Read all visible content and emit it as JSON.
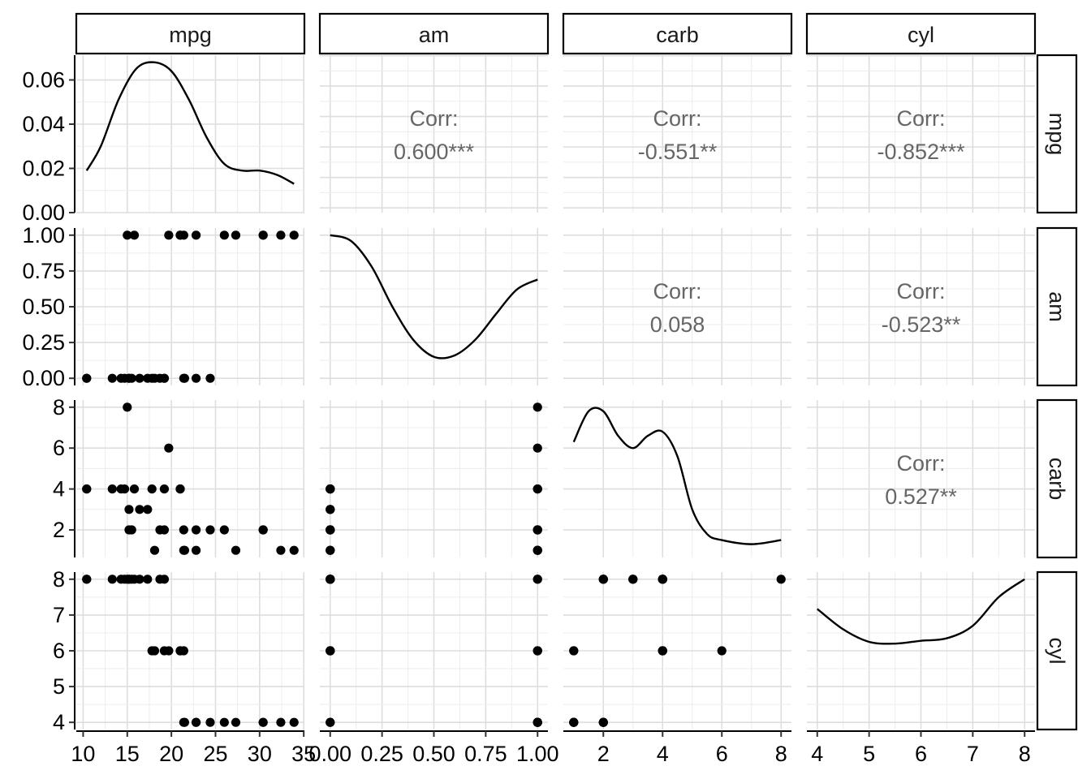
{
  "chart_data": {
    "type": "scatter",
    "subtype": "pairs-plot",
    "variables": [
      "mpg",
      "am",
      "carb",
      "cyl"
    ],
    "row_strips": [
      "mpg",
      "am",
      "carb",
      "cyl"
    ],
    "grid": true,
    "axes": {
      "mpg": {
        "range": [
          10.4,
          33.9
        ],
        "ticks": [
          10,
          15,
          20,
          25,
          30,
          35
        ]
      },
      "am": {
        "range": [
          0,
          1
        ],
        "ticks": [
          0,
          0.25,
          0.5,
          0.75,
          1
        ],
        "tick_labels": [
          "0.00",
          "0.25",
          "0.50",
          "0.75",
          "1.00"
        ]
      },
      "carb": {
        "range": [
          1,
          8
        ],
        "ticks": [
          2,
          4,
          6,
          8
        ]
      },
      "cyl": {
        "range": [
          4,
          8
        ],
        "ticks": [
          4,
          5,
          6,
          7,
          8
        ]
      }
    },
    "density_y_axis": {
      "range": [
        0,
        0.0712
      ],
      "ticks": [
        0,
        0.02,
        0.04,
        0.06
      ],
      "tick_labels": [
        "0.00",
        "0.02",
        "0.04",
        "0.06"
      ]
    },
    "correlations": [
      {
        "row": "mpg",
        "col": "am",
        "label": "Corr:",
        "value": "0.600***"
      },
      {
        "row": "mpg",
        "col": "carb",
        "label": "Corr:",
        "value": "-0.551**"
      },
      {
        "row": "mpg",
        "col": "cyl",
        "label": "Corr:",
        "value": "-0.852***"
      },
      {
        "row": "am",
        "col": "carb",
        "label": "Corr:",
        "value": "0.058"
      },
      {
        "row": "am",
        "col": "cyl",
        "label": "Corr:",
        "value": "-0.523**"
      },
      {
        "row": "carb",
        "col": "cyl",
        "label": "Corr:",
        "value": "0.527**"
      }
    ],
    "densities": {
      "mpg": {
        "x": [
          10.4,
          12,
          14,
          16,
          18,
          20,
          22,
          24,
          26,
          28,
          30,
          32,
          33.9
        ],
        "y": [
          0.019,
          0.03,
          0.051,
          0.065,
          0.068,
          0.064,
          0.051,
          0.034,
          0.022,
          0.019,
          0.019,
          0.017,
          0.013
        ]
      },
      "am": {
        "x": [
          0,
          0.1,
          0.2,
          0.3,
          0.4,
          0.5,
          0.6,
          0.7,
          0.8,
          0.9,
          1.0
        ],
        "y": [
          1.0,
          0.96,
          0.78,
          0.5,
          0.27,
          0.15,
          0.16,
          0.27,
          0.45,
          0.62,
          0.69
        ]
      },
      "carb": {
        "x": [
          1,
          1.5,
          2,
          2.5,
          3,
          3.5,
          4,
          4.5,
          5,
          5.5,
          6,
          7,
          8
        ],
        "y": [
          6.3,
          7.8,
          7.8,
          6.6,
          6.0,
          6.6,
          6.8,
          5.6,
          3.0,
          1.8,
          1.5,
          1.3,
          1.5
        ]
      },
      "cyl": {
        "x": [
          4,
          4.5,
          5,
          5.5,
          6,
          6.5,
          7,
          7.5,
          8
        ],
        "y": [
          7.17,
          6.6,
          6.25,
          6.2,
          6.28,
          6.35,
          6.7,
          7.5,
          8.0
        ]
      }
    },
    "cars": [
      {
        "mpg": 21.0,
        "cyl": 6,
        "am": 1,
        "carb": 4
      },
      {
        "mpg": 21.0,
        "cyl": 6,
        "am": 1,
        "carb": 4
      },
      {
        "mpg": 22.8,
        "cyl": 4,
        "am": 1,
        "carb": 1
      },
      {
        "mpg": 21.4,
        "cyl": 6,
        "am": 0,
        "carb": 1
      },
      {
        "mpg": 18.7,
        "cyl": 8,
        "am": 0,
        "carb": 2
      },
      {
        "mpg": 18.1,
        "cyl": 6,
        "am": 0,
        "carb": 1
      },
      {
        "mpg": 14.3,
        "cyl": 8,
        "am": 0,
        "carb": 4
      },
      {
        "mpg": 24.4,
        "cyl": 4,
        "am": 0,
        "carb": 2
      },
      {
        "mpg": 22.8,
        "cyl": 4,
        "am": 0,
        "carb": 2
      },
      {
        "mpg": 19.2,
        "cyl": 6,
        "am": 0,
        "carb": 4
      },
      {
        "mpg": 17.8,
        "cyl": 6,
        "am": 0,
        "carb": 4
      },
      {
        "mpg": 16.4,
        "cyl": 8,
        "am": 0,
        "carb": 3
      },
      {
        "mpg": 17.3,
        "cyl": 8,
        "am": 0,
        "carb": 3
      },
      {
        "mpg": 15.2,
        "cyl": 8,
        "am": 0,
        "carb": 3
      },
      {
        "mpg": 10.4,
        "cyl": 8,
        "am": 0,
        "carb": 4
      },
      {
        "mpg": 10.4,
        "cyl": 8,
        "am": 0,
        "carb": 4
      },
      {
        "mpg": 14.7,
        "cyl": 8,
        "am": 0,
        "carb": 4
      },
      {
        "mpg": 32.4,
        "cyl": 4,
        "am": 1,
        "carb": 1
      },
      {
        "mpg": 30.4,
        "cyl": 4,
        "am": 1,
        "carb": 2
      },
      {
        "mpg": 33.9,
        "cyl": 4,
        "am": 1,
        "carb": 1
      },
      {
        "mpg": 21.5,
        "cyl": 4,
        "am": 0,
        "carb": 1
      },
      {
        "mpg": 15.5,
        "cyl": 8,
        "am": 0,
        "carb": 2
      },
      {
        "mpg": 15.2,
        "cyl": 8,
        "am": 0,
        "carb": 2
      },
      {
        "mpg": 13.3,
        "cyl": 8,
        "am": 0,
        "carb": 4
      },
      {
        "mpg": 19.2,
        "cyl": 8,
        "am": 0,
        "carb": 2
      },
      {
        "mpg": 27.3,
        "cyl": 4,
        "am": 1,
        "carb": 1
      },
      {
        "mpg": 26.0,
        "cyl": 4,
        "am": 1,
        "carb": 2
      },
      {
        "mpg": 30.4,
        "cyl": 4,
        "am": 1,
        "carb": 2
      },
      {
        "mpg": 15.8,
        "cyl": 8,
        "am": 1,
        "carb": 4
      },
      {
        "mpg": 19.7,
        "cyl": 6,
        "am": 1,
        "carb": 6
      },
      {
        "mpg": 15.0,
        "cyl": 8,
        "am": 1,
        "carb": 8
      },
      {
        "mpg": 21.4,
        "cyl": 4,
        "am": 1,
        "carb": 2
      }
    ]
  }
}
